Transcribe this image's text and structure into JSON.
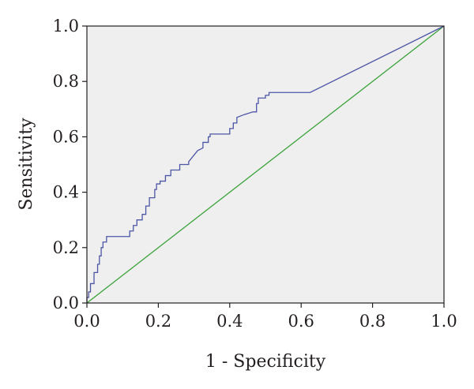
{
  "chart_data": {
    "type": "line",
    "title": "",
    "xlabel": "1 - Specificity",
    "ylabel": "Sensitivity",
    "xlim": [
      0.0,
      1.0
    ],
    "ylim": [
      0.0,
      1.0
    ],
    "xticks": [
      "0.0",
      "0.2",
      "0.4",
      "0.6",
      "0.8",
      "1.0"
    ],
    "yticks": [
      "0.0",
      "0.2",
      "0.4",
      "0.6",
      "0.8",
      "1.0"
    ],
    "grid": false,
    "legend": "none",
    "colors": {
      "plot_background": "#efefef",
      "roc_curve": "#4d56a6",
      "reference_line": "#3aa23a",
      "axis": "#231f20"
    },
    "series": [
      {
        "x": [
          0.0,
          0.0,
          0.005,
          0.005,
          0.01,
          0.01,
          0.02,
          0.02,
          0.03,
          0.03,
          0.035,
          0.035,
          0.04,
          0.04,
          0.045,
          0.045,
          0.055,
          0.055,
          0.12,
          0.12,
          0.13,
          0.13,
          0.14,
          0.14,
          0.155,
          0.155,
          0.165,
          0.165,
          0.175,
          0.175,
          0.19,
          0.19,
          0.195,
          0.195,
          0.205,
          0.205,
          0.22,
          0.22,
          0.235,
          0.235,
          0.245,
          0.245,
          0.26,
          0.26,
          0.285,
          0.285,
          0.31,
          0.325,
          0.325,
          0.34,
          0.34,
          0.345,
          0.345,
          0.4,
          0.4,
          0.41,
          0.41,
          0.42,
          0.42,
          0.44,
          0.465,
          0.475,
          0.475,
          0.48,
          0.48,
          0.5,
          0.5,
          0.51,
          0.51,
          0.625,
          1.0
        ],
        "y": [
          0.0,
          0.02,
          0.02,
          0.04,
          0.04,
          0.07,
          0.07,
          0.11,
          0.11,
          0.14,
          0.14,
          0.17,
          0.17,
          0.2,
          0.2,
          0.22,
          0.22,
          0.24,
          0.24,
          0.26,
          0.26,
          0.28,
          0.28,
          0.3,
          0.3,
          0.32,
          0.32,
          0.35,
          0.35,
          0.38,
          0.38,
          0.41,
          0.41,
          0.43,
          0.43,
          0.44,
          0.44,
          0.46,
          0.46,
          0.48,
          0.48,
          0.48,
          0.48,
          0.5,
          0.5,
          0.51,
          0.55,
          0.56,
          0.58,
          0.58,
          0.6,
          0.6,
          0.61,
          0.61,
          0.63,
          0.63,
          0.65,
          0.65,
          0.67,
          0.68,
          0.69,
          0.69,
          0.72,
          0.72,
          0.74,
          0.74,
          0.75,
          0.75,
          0.76,
          0.76,
          1.0
        ]
      },
      {
        "x": [
          0.0,
          1.0
        ],
        "y": [
          0.0,
          1.0
        ]
      }
    ]
  }
}
